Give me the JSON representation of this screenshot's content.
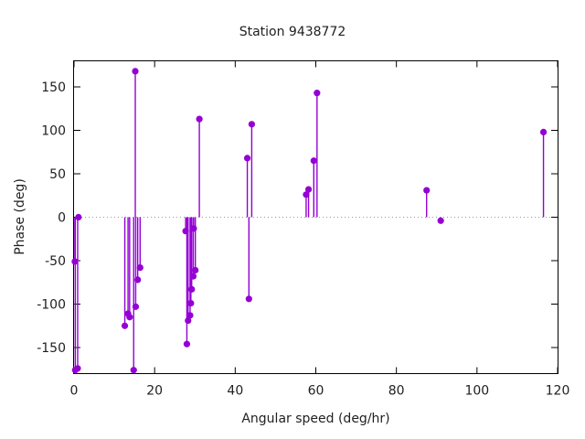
{
  "chart_data": {
    "type": "scatter",
    "style": "impulse-stems-with-points",
    "title": "Station 9438772",
    "xlabel": "Angular speed (deg/hr)",
    "ylabel": "Phase (deg)",
    "xlim": [
      0,
      120
    ],
    "ylim": [
      -180,
      180
    ],
    "xticks": [
      0,
      20,
      40,
      60,
      80,
      100,
      120
    ],
    "yticks": [
      -150,
      -100,
      -50,
      0,
      50,
      100,
      150
    ],
    "grid": false,
    "legend": "none",
    "zero_line": {
      "show": true,
      "style": "dotted",
      "color": "#999999"
    },
    "series_color": "#9400d3",
    "border_color": "#000000",
    "points": [
      [
        0.2,
        -51
      ],
      [
        0.3,
        -176
      ],
      [
        0.9,
        -174
      ],
      [
        1.1,
        0
      ],
      [
        12.6,
        -125
      ],
      [
        13.4,
        -111
      ],
      [
        13.8,
        -115
      ],
      [
        14.8,
        -176
      ],
      [
        15.2,
        168
      ],
      [
        15.3,
        -103
      ],
      [
        15.8,
        -72
      ],
      [
        16.4,
        -58
      ],
      [
        27.7,
        -16
      ],
      [
        28.0,
        -146
      ],
      [
        28.3,
        -119
      ],
      [
        28.8,
        -113
      ],
      [
        29.0,
        -99
      ],
      [
        29.2,
        -83
      ],
      [
        29.6,
        -68
      ],
      [
        29.7,
        -13
      ],
      [
        30.1,
        -61
      ],
      [
        31.1,
        113
      ],
      [
        43.0,
        68
      ],
      [
        43.4,
        -94
      ],
      [
        44.1,
        107
      ],
      [
        57.6,
        26
      ],
      [
        58.2,
        32
      ],
      [
        59.5,
        65
      ],
      [
        60.3,
        143
      ],
      [
        87.5,
        31
      ],
      [
        91.0,
        -4
      ],
      [
        116.5,
        98
      ]
    ]
  }
}
